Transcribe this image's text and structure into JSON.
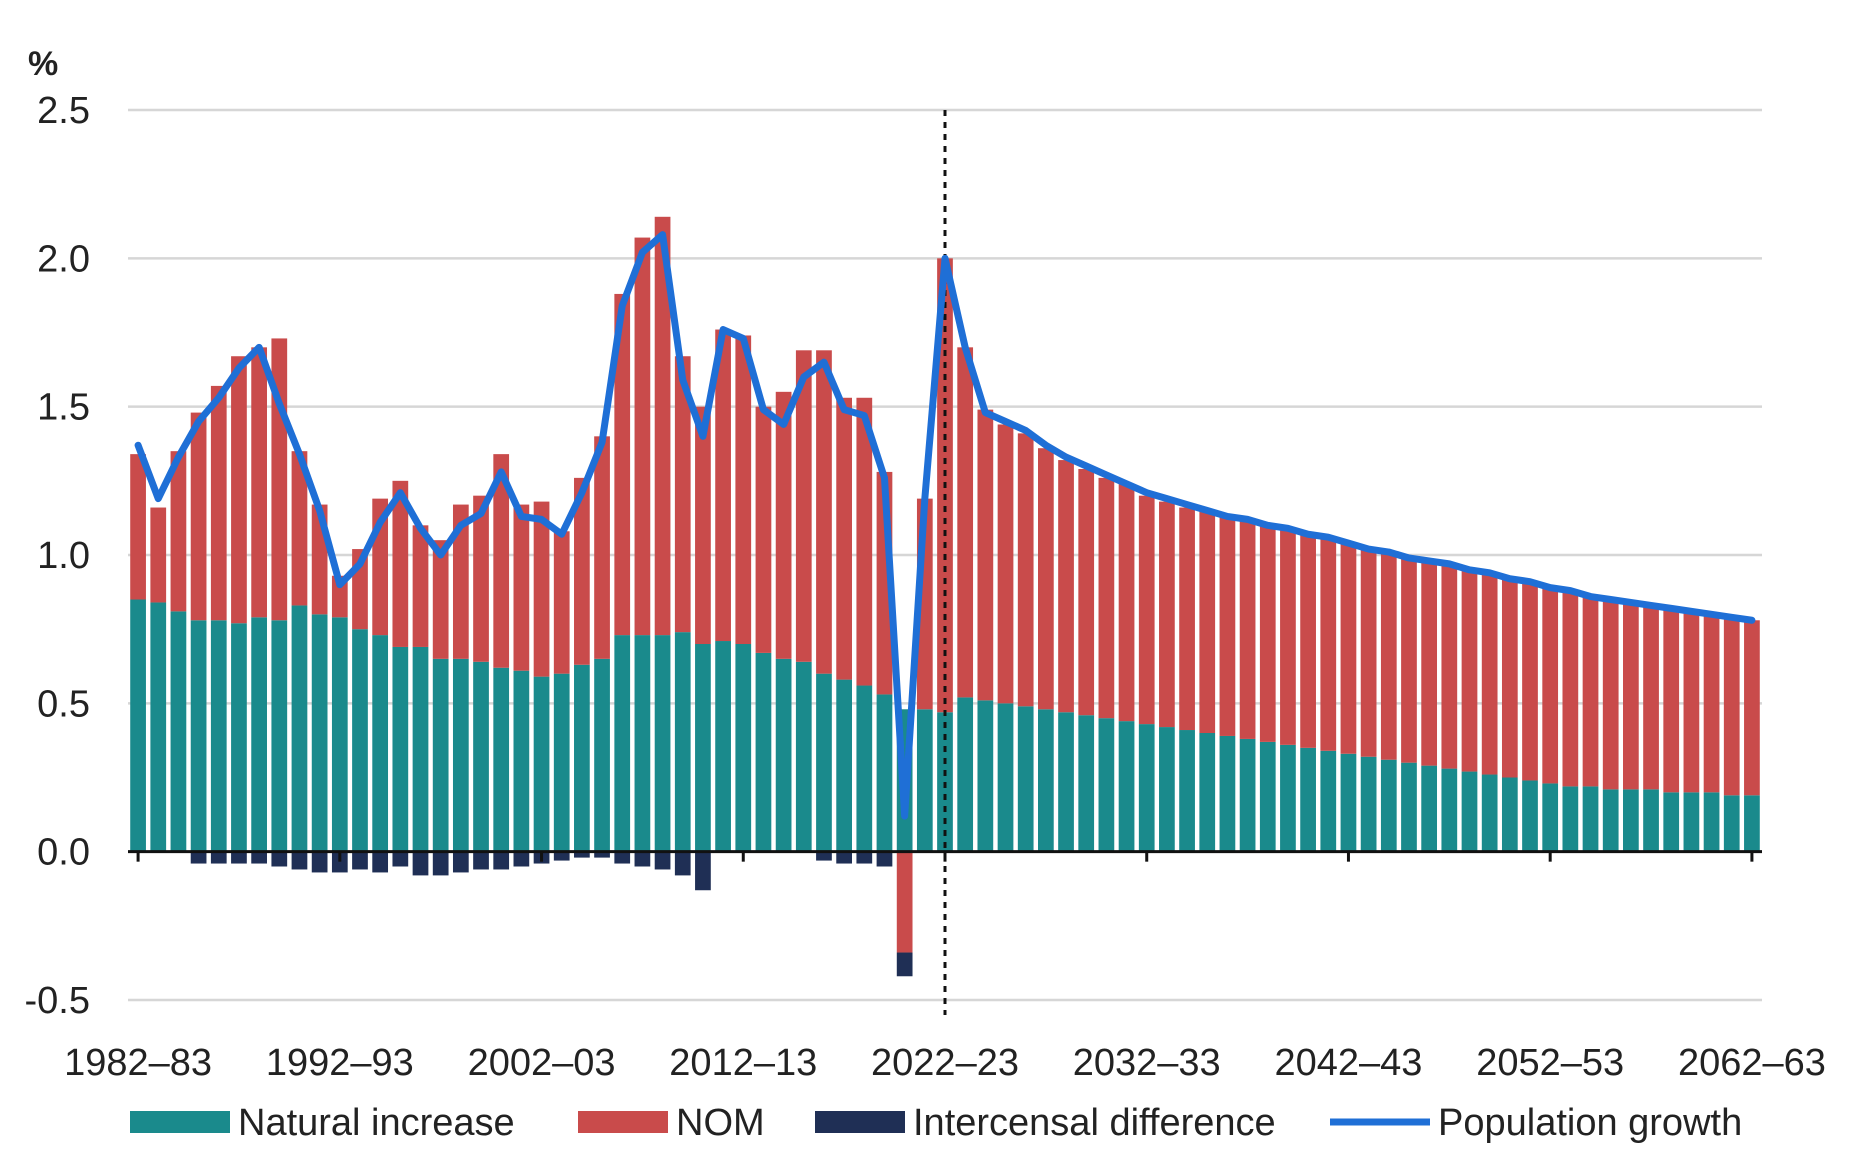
{
  "chart_data": {
    "type": "bar",
    "ylabel": "%",
    "ylim": [
      -0.5,
      2.5
    ],
    "yticks": [
      -0.5,
      0.0,
      0.5,
      1.0,
      1.5,
      2.0,
      2.5
    ],
    "ytick_labels": [
      "-0.5",
      "0.0",
      "0.5",
      "1.0",
      "1.5",
      "2.0",
      "2.5"
    ],
    "xtick_labels": [
      "1982–83",
      "1992–93",
      "2002–03",
      "2012–13",
      "2022–23",
      "2032–33",
      "2042–43",
      "2052–53",
      "2062–63"
    ],
    "projection_start": "2022–23",
    "grid": true,
    "legend_position": "bottom",
    "categories": [
      "1982–83",
      "1983–84",
      "1984–85",
      "1985–86",
      "1986–87",
      "1987–88",
      "1988–89",
      "1989–90",
      "1990–91",
      "1991–92",
      "1992–93",
      "1993–94",
      "1994–95",
      "1995–96",
      "1996–97",
      "1997–98",
      "1998–99",
      "1999–00",
      "2000–01",
      "2001–02",
      "2002–03",
      "2003–04",
      "2004–05",
      "2005–06",
      "2006–07",
      "2007–08",
      "2008–09",
      "2009–10",
      "2010–11",
      "2011–12",
      "2012–13",
      "2013–14",
      "2014–15",
      "2015–16",
      "2016–17",
      "2017–18",
      "2018–19",
      "2019–20",
      "2020–21",
      "2021–22",
      "2022–23",
      "2023–24",
      "2024–25",
      "2025–26",
      "2026–27",
      "2027–28",
      "2028–29",
      "2029–30",
      "2030–31",
      "2031–32",
      "2032–33",
      "2033–34",
      "2034–35",
      "2035–36",
      "2036–37",
      "2037–38",
      "2038–39",
      "2039–40",
      "2040–41",
      "2041–42",
      "2042–43",
      "2043–44",
      "2044–45",
      "2045–46",
      "2046–47",
      "2047–48",
      "2048–49",
      "2049–50",
      "2050–51",
      "2051–52",
      "2052–53",
      "2053–54",
      "2054–55",
      "2055–56",
      "2056–57",
      "2057–58",
      "2058–59",
      "2059–60",
      "2060–61",
      "2061–62",
      "2062–63"
    ],
    "series": [
      {
        "name": "Natural increase",
        "type": "bar",
        "color": "#1a8a8c",
        "values": [
          0.85,
          0.84,
          0.81,
          0.78,
          0.78,
          0.77,
          0.79,
          0.78,
          0.83,
          0.8,
          0.79,
          0.75,
          0.73,
          0.69,
          0.69,
          0.65,
          0.65,
          0.64,
          0.62,
          0.61,
          0.59,
          0.6,
          0.63,
          0.65,
          0.73,
          0.73,
          0.73,
          0.74,
          0.7,
          0.71,
          0.7,
          0.67,
          0.65,
          0.64,
          0.6,
          0.58,
          0.56,
          0.53,
          0.48,
          0.48,
          0.47,
          0.52,
          0.51,
          0.5,
          0.49,
          0.48,
          0.47,
          0.46,
          0.45,
          0.44,
          0.43,
          0.42,
          0.41,
          0.4,
          0.39,
          0.38,
          0.37,
          0.36,
          0.35,
          0.34,
          0.33,
          0.32,
          0.31,
          0.3,
          0.29,
          0.28,
          0.27,
          0.26,
          0.25,
          0.24,
          0.23,
          0.22,
          0.22,
          0.21,
          0.21,
          0.21,
          0.2,
          0.2,
          0.2,
          0.19,
          0.19
        ]
      },
      {
        "name": "NOM",
        "type": "bar",
        "color": "#c94b4b",
        "values": [
          0.49,
          0.32,
          0.54,
          0.7,
          0.79,
          0.9,
          0.91,
          0.95,
          0.52,
          0.37,
          0.14,
          0.27,
          0.46,
          0.56,
          0.41,
          0.4,
          0.52,
          0.56,
          0.72,
          0.56,
          0.59,
          0.48,
          0.63,
          0.75,
          1.15,
          1.34,
          1.41,
          0.93,
          0.8,
          1.05,
          1.04,
          0.83,
          0.9,
          1.05,
          1.09,
          0.95,
          0.97,
          0.75,
          -0.34,
          0.71,
          1.53,
          1.18,
          0.98,
          0.94,
          0.92,
          0.88,
          0.85,
          0.83,
          0.81,
          0.8,
          0.77,
          0.76,
          0.75,
          0.75,
          0.74,
          0.74,
          0.73,
          0.73,
          0.72,
          0.72,
          0.71,
          0.7,
          0.7,
          0.69,
          0.69,
          0.69,
          0.68,
          0.68,
          0.67,
          0.67,
          0.66,
          0.66,
          0.64,
          0.64,
          0.63,
          0.62,
          0.62,
          0.61,
          0.6,
          0.6,
          0.59
        ]
      },
      {
        "name": "Intercensal difference",
        "type": "bar",
        "color": "#1f2f55",
        "values": [
          0,
          0,
          0,
          -0.04,
          -0.04,
          -0.04,
          -0.04,
          -0.05,
          -0.06,
          -0.07,
          -0.07,
          -0.06,
          -0.07,
          -0.05,
          -0.08,
          -0.08,
          -0.07,
          -0.06,
          -0.06,
          -0.05,
          -0.04,
          -0.03,
          -0.02,
          -0.02,
          -0.04,
          -0.05,
          -0.06,
          -0.08,
          -0.13,
          0,
          0,
          0,
          0,
          0,
          -0.03,
          -0.04,
          -0.04,
          -0.05,
          -0.08,
          0,
          0,
          0,
          0,
          0,
          0,
          0,
          0,
          0,
          0,
          0,
          0,
          0,
          0,
          0,
          0,
          0,
          0,
          0,
          0,
          0,
          0,
          0,
          0,
          0,
          0,
          0,
          0,
          0,
          0,
          0,
          0,
          0,
          0,
          0,
          0,
          0,
          0,
          0,
          0,
          0,
          0
        ]
      },
      {
        "name": "Population growth",
        "type": "line",
        "color": "#1f6fd6",
        "values": [
          1.37,
          1.19,
          1.33,
          1.45,
          1.53,
          1.63,
          1.7,
          1.51,
          1.34,
          1.15,
          0.9,
          0.97,
          1.11,
          1.21,
          1.09,
          1.0,
          1.1,
          1.14,
          1.28,
          1.13,
          1.12,
          1.07,
          1.21,
          1.38,
          1.84,
          2.02,
          2.08,
          1.59,
          1.4,
          1.76,
          1.73,
          1.49,
          1.44,
          1.6,
          1.65,
          1.49,
          1.47,
          1.26,
          0.12,
          1.19,
          2.0,
          1.7,
          1.48,
          1.45,
          1.42,
          1.37,
          1.33,
          1.3,
          1.27,
          1.24,
          1.21,
          1.19,
          1.17,
          1.15,
          1.13,
          1.12,
          1.1,
          1.09,
          1.07,
          1.06,
          1.04,
          1.02,
          1.01,
          0.99,
          0.98,
          0.97,
          0.95,
          0.94,
          0.92,
          0.91,
          0.89,
          0.88,
          0.86,
          0.85,
          0.84,
          0.83,
          0.82,
          0.81,
          0.8,
          0.79,
          0.78
        ]
      }
    ]
  }
}
